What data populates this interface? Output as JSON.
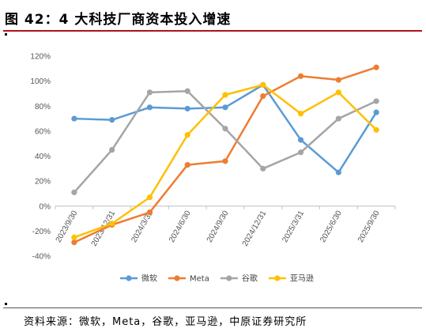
{
  "figure": {
    "title": "图 42：4 大科技厂商资本投入增速",
    "source": "资料来源：微软，Meta，谷歌，亚马逊，中原证券研究所"
  },
  "chart_data": {
    "type": "line",
    "x": [
      "2023/9/30",
      "2023/12/31",
      "2024/3/31",
      "2024/6/30",
      "2024/9/30",
      "2024/12/31",
      "2025/3/31",
      "2025/6/30",
      "2025/9/30"
    ],
    "ylim": [
      -0.4,
      1.2
    ],
    "yticks": [
      "-40%",
      "-20%",
      "0%",
      "20%",
      "40%",
      "60%",
      "80%",
      "100%",
      "120%"
    ],
    "grid": false,
    "legend": "bottom",
    "series": [
      {
        "name": "微软",
        "color": "#5b9bd5",
        "values": [
          0.7,
          0.69,
          0.79,
          0.78,
          0.79,
          0.97,
          0.53,
          0.27,
          0.75
        ]
      },
      {
        "name": "Meta",
        "color": "#ed7d31",
        "values": [
          -0.29,
          -0.15,
          -0.05,
          0.33,
          0.36,
          0.88,
          1.04,
          1.01,
          1.11
        ]
      },
      {
        "name": "谷歌",
        "color": "#a5a5a5",
        "values": [
          0.11,
          0.45,
          0.91,
          0.92,
          0.62,
          0.3,
          0.43,
          0.7,
          0.84
        ]
      },
      {
        "name": "亚马逊",
        "color": "#ffc000",
        "values": [
          -0.25,
          -0.14,
          0.07,
          0.57,
          0.89,
          0.97,
          0.74,
          0.91,
          0.61
        ]
      }
    ]
  }
}
